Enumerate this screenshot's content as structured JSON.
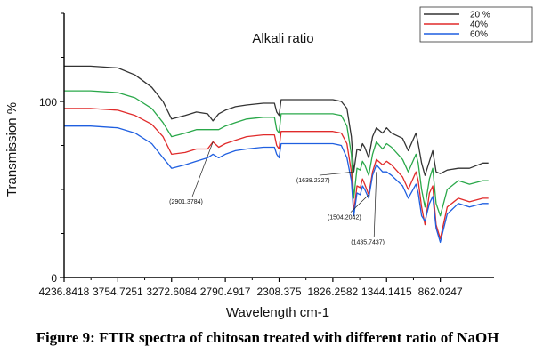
{
  "caption": "Figure 9: FTIR spectra of chitosan treated with different ratio of NaOH",
  "chart_data": {
    "type": "line",
    "title": "Alkali ratio",
    "xlabel": "Wavelength cm-1",
    "ylabel": "Transmission %",
    "xlim": [
      4236.8418,
      380
    ],
    "ylim": [
      0,
      150
    ],
    "x_reversed": true,
    "xticks": [
      "4236.8418",
      "3754.7251",
      "3272.6084",
      "2790.4917",
      "2308.375",
      "1826.2582",
      "1344.1415",
      "862.0247"
    ],
    "yticks": [
      0,
      100
    ],
    "grid": false,
    "legend_position": "top-right",
    "series": [
      {
        "name": "20 %",
        "color": "#333333",
        "x": [
          4236.8,
          4000,
          3754.7,
          3600,
          3450,
          3350,
          3272.6,
          3150,
          3050,
          2950,
          2901.4,
          2850,
          2790.5,
          2700,
          2600,
          2450,
          2350,
          2330,
          2308.4,
          2290,
          2250,
          2100,
          1950,
          1826.3,
          1750,
          1700,
          1660,
          1638.2,
          1610,
          1580,
          1560,
          1540,
          1504.2,
          1470,
          1435.7,
          1380,
          1344.1,
          1300,
          1200,
          1150,
          1080,
          1060,
          1030,
          1000,
          960,
          930,
          900,
          862.0,
          800,
          700,
          600,
          480,
          430
        ],
        "y": [
          120,
          120,
          119,
          115,
          108,
          100,
          90,
          92,
          94,
          93,
          89,
          93,
          95,
          97,
          98,
          99,
          99,
          94,
          92,
          101,
          101,
          101,
          101,
          101,
          100,
          96,
          80,
          60,
          73,
          72,
          76,
          74,
          68,
          80,
          85,
          82,
          85,
          82,
          79,
          72,
          82,
          76,
          65,
          58,
          66,
          72,
          60,
          59,
          61,
          62,
          62,
          65,
          65
        ]
      },
      {
        "name": "40%",
        "color": "#e02a2a",
        "x": [
          4236.8,
          4000,
          3754.7,
          3600,
          3450,
          3350,
          3272.6,
          3150,
          3050,
          2950,
          2901.4,
          2850,
          2790.5,
          2700,
          2600,
          2450,
          2350,
          2330,
          2308.4,
          2290,
          2250,
          2100,
          1950,
          1826.3,
          1750,
          1700,
          1660,
          1638.2,
          1610,
          1580,
          1560,
          1540,
          1504.2,
          1470,
          1435.7,
          1380,
          1344.1,
          1300,
          1200,
          1150,
          1080,
          1060,
          1030,
          1000,
          960,
          930,
          900,
          862.0,
          800,
          700,
          600,
          480,
          430
        ],
        "y": [
          96,
          96,
          95,
          92,
          87,
          80,
          70,
          71,
          73,
          73,
          77,
          74,
          76,
          78,
          80,
          81,
          81,
          75,
          73,
          83,
          83,
          83,
          83,
          83,
          82,
          76,
          60,
          37,
          52,
          51,
          56,
          53,
          47,
          60,
          67,
          64,
          66,
          64,
          57,
          50,
          60,
          55,
          40,
          30,
          48,
          52,
          30,
          22,
          40,
          45,
          43,
          45,
          45
        ]
      },
      {
        "name": "60%",
        "color": "#1f5fe0",
        "x": [
          4236.8,
          4000,
          3754.7,
          3600,
          3450,
          3350,
          3272.6,
          3150,
          3050,
          2950,
          2901.4,
          2850,
          2790.5,
          2700,
          2600,
          2450,
          2350,
          2330,
          2308.4,
          2290,
          2250,
          2100,
          1950,
          1826.3,
          1750,
          1700,
          1660,
          1638.2,
          1610,
          1580,
          1560,
          1540,
          1504.2,
          1470,
          1435.7,
          1380,
          1344.1,
          1300,
          1200,
          1150,
          1080,
          1060,
          1030,
          1000,
          960,
          930,
          900,
          862.0,
          800,
          700,
          600,
          480,
          430
        ],
        "y": [
          86,
          86,
          85,
          82,
          76,
          68,
          62,
          64,
          66,
          68,
          70,
          68,
          70,
          72,
          73,
          74,
          74,
          70,
          68,
          76,
          76,
          76,
          76,
          76,
          75,
          68,
          55,
          35,
          48,
          47,
          52,
          50,
          45,
          58,
          64,
          60,
          60,
          58,
          52,
          45,
          53,
          48,
          35,
          32,
          42,
          46,
          28,
          20,
          36,
          42,
          40,
          42,
          42
        ]
      },
      {
        "name": "",
        "color": "#2aa84a",
        "x": [
          4236.8,
          4000,
          3754.7,
          3600,
          3450,
          3350,
          3272.6,
          3150,
          3050,
          2950,
          2901.4,
          2850,
          2790.5,
          2700,
          2600,
          2450,
          2350,
          2330,
          2308.4,
          2290,
          2250,
          2100,
          1950,
          1826.3,
          1750,
          1700,
          1660,
          1638.2,
          1610,
          1580,
          1560,
          1540,
          1504.2,
          1470,
          1435.7,
          1380,
          1344.1,
          1300,
          1200,
          1150,
          1080,
          1060,
          1030,
          1000,
          960,
          930,
          900,
          862.0,
          800,
          700,
          600,
          480,
          430
        ],
        "y": [
          106,
          106,
          105,
          102,
          96,
          88,
          80,
          82,
          84,
          84,
          84,
          84,
          86,
          88,
          90,
          91,
          91,
          84,
          82,
          93,
          93,
          93,
          93,
          93,
          92,
          86,
          70,
          45,
          62,
          61,
          66,
          64,
          58,
          70,
          77,
          73,
          76,
          74,
          67,
          60,
          70,
          65,
          50,
          40,
          56,
          62,
          42,
          35,
          50,
          55,
          53,
          55,
          55
        ]
      }
    ],
    "annotations": [
      {
        "text": "(2901.3784)",
        "x": 2901.3784,
        "y": 77,
        "label_x": 3150,
        "label_y": 42
      },
      {
        "text": "(1638.2327)",
        "x": 1638.2327,
        "y": 60,
        "label_x": 2010,
        "label_y": 54
      },
      {
        "text": "(1504.2042)",
        "x": 1504.2042,
        "y": 47,
        "label_x": 1730,
        "label_y": 33
      },
      {
        "text": "(1435.7437)",
        "x": 1435.7437,
        "y": 60,
        "label_x": 1520,
        "label_y": 19
      }
    ]
  }
}
